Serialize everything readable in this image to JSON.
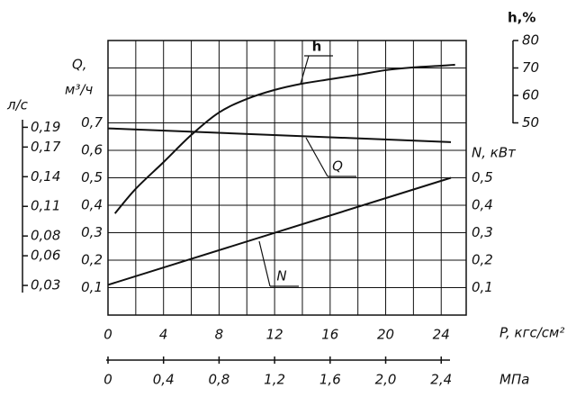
{
  "chart_data": {
    "type": "line",
    "x_label": "P,  кгс/см²",
    "x2_label": "МПа",
    "y_label": "Q,",
    "y_unit": "м³/ч",
    "y2_label": "N, кВт",
    "y3_label": "л/с",
    "y4_label": "h,%",
    "xlim": [
      0,
      25.8
    ],
    "xticks": [
      0,
      4,
      8,
      12,
      16,
      20,
      24
    ],
    "x_grid": [
      2,
      4,
      6,
      8,
      10,
      12,
      14,
      16,
      18,
      20,
      22,
      24
    ],
    "x2lim": [
      0,
      2.58
    ],
    "x2ticks": [
      0,
      {
        "value": 0.4,
        "label": "0,4"
      },
      {
        "value": 0.8,
        "label": "0,8"
      },
      {
        "value": 1.2,
        "label": "1,2"
      },
      {
        "value": 1.6,
        "label": "1,6"
      },
      {
        "value": 2.0,
        "label": "2,0"
      },
      {
        "value": 2.4,
        "label": "2,4"
      }
    ],
    "ylim": [
      0,
      1
    ],
    "yticks": [
      {
        "value": 0.1,
        "label": "0,1"
      },
      {
        "value": 0.2,
        "label": "0,2"
      },
      {
        "value": 0.3,
        "label": "0,3"
      },
      {
        "value": 0.4,
        "label": "0,4"
      },
      {
        "value": 0.5,
        "label": "0,5"
      },
      {
        "value": 0.6,
        "label": "0,6"
      },
      {
        "value": 0.7,
        "label": "0,7"
      }
    ],
    "y_grid": [
      0.1,
      0.2,
      0.3,
      0.4,
      0.5,
      0.6,
      0.7,
      0.8,
      0.9
    ],
    "y2lim": [
      0,
      1
    ],
    "y2ticks": [
      {
        "value": 0.1,
        "label": "0,1"
      },
      {
        "value": 0.2,
        "label": "0,2"
      },
      {
        "value": 0.3,
        "label": "0,3"
      },
      {
        "value": 0.4,
        "label": "0,4"
      },
      {
        "value": 0.5,
        "label": "0,5"
      }
    ],
    "y3lim": [
      0,
      0.2778
    ],
    "y3ticks": [
      {
        "value": 0.03,
        "label": "0,03"
      },
      {
        "value": 0.06,
        "label": "0,06"
      },
      {
        "value": 0.08,
        "label": "0,08"
      },
      {
        "value": 0.11,
        "label": "0,11"
      },
      {
        "value": 0.14,
        "label": "0,14"
      },
      {
        "value": 0.17,
        "label": "0,17"
      },
      {
        "value": 0.19,
        "label": "0,19"
      }
    ],
    "y4lim": [
      -20,
      80
    ],
    "y4ticks": [
      50,
      60,
      70,
      80
    ],
    "grid": true,
    "color": "#111111",
    "series": [
      {
        "name": "h",
        "axis": "y4",
        "x": [
          0.5,
          2,
          4,
          6,
          8,
          10,
          12,
          14,
          16,
          18,
          20,
          22,
          24,
          25
        ],
        "values": [
          17,
          26,
          35.7,
          45.6,
          53.8,
          58.7,
          62,
          64.3,
          65.9,
          67.5,
          69.2,
          70.2,
          70.8,
          71.2
        ]
      },
      {
        "name": "Q",
        "axis": "y",
        "x": [
          0,
          24.7
        ],
        "values": [
          0.68,
          0.63
        ]
      },
      {
        "name": "N",
        "axis": "y2",
        "x": [
          0,
          24.7
        ],
        "values": [
          0.11,
          0.5
        ]
      }
    ]
  }
}
